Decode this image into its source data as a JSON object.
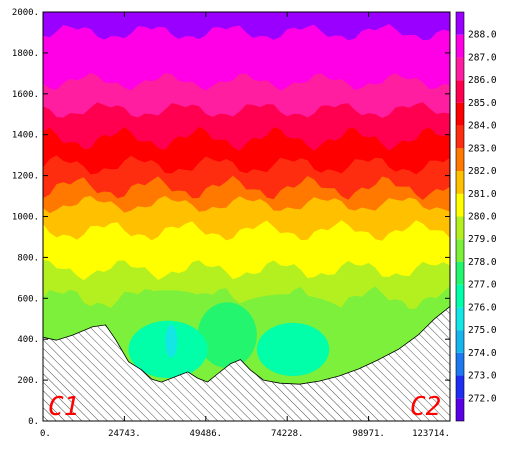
{
  "chart_data": {
    "type": "contour",
    "x_ticks": [
      "0.",
      "24743.",
      "49486.",
      "74228.",
      "98971.",
      "123714."
    ],
    "y_ticks": [
      "0.",
      "200.",
      "400.",
      "600.",
      "800.",
      "1000.",
      "1200.",
      "1400.",
      "1600.",
      "1800.",
      "2000."
    ],
    "xlim": [
      0,
      123714
    ],
    "ylim": [
      0,
      2000
    ],
    "levels": [
      {
        "label": "272.0",
        "color": "#5a00e6"
      },
      {
        "label": "273.0",
        "color": "#1f2ff2"
      },
      {
        "label": "274.0",
        "color": "#1e78f0"
      },
      {
        "label": "275.0",
        "color": "#17b4ee"
      },
      {
        "label": "276.0",
        "color": "#14e6e6"
      },
      {
        "label": "277.0",
        "color": "#00ffa8"
      },
      {
        "label": "278.0",
        "color": "#24f56e"
      },
      {
        "label": "279.0",
        "color": "#7cf03a"
      },
      {
        "label": "280.0",
        "color": "#b4f020"
      },
      {
        "label": "281.0",
        "color": "#ffff00"
      },
      {
        "label": "282.0",
        "color": "#ffc000"
      },
      {
        "label": "283.0",
        "color": "#ff7800"
      },
      {
        "label": "284.0",
        "color": "#ff2d10"
      },
      {
        "label": "285.0",
        "color": "#ff0000"
      },
      {
        "label": "286.0",
        "color": "#ff0050"
      },
      {
        "label": "287.0",
        "color": "#ff1ea0"
      },
      {
        "label": "288.0",
        "color": "#ff00e6"
      },
      {
        "label": "",
        "color": "#9900ff"
      }
    ],
    "annotations": [
      {
        "id": "left",
        "text": "C1"
      },
      {
        "id": "right",
        "text": "C2"
      }
    ],
    "terrain": [
      {
        "x": 0,
        "y": 410
      },
      {
        "x": 4000,
        "y": 395
      },
      {
        "x": 9000,
        "y": 420
      },
      {
        "x": 15000,
        "y": 460
      },
      {
        "x": 19000,
        "y": 470
      },
      {
        "x": 22000,
        "y": 400
      },
      {
        "x": 26000,
        "y": 290
      },
      {
        "x": 30000,
        "y": 250
      },
      {
        "x": 33000,
        "y": 205
      },
      {
        "x": 36000,
        "y": 190
      },
      {
        "x": 40000,
        "y": 215
      },
      {
        "x": 44000,
        "y": 240
      },
      {
        "x": 47000,
        "y": 210
      },
      {
        "x": 50000,
        "y": 190
      },
      {
        "x": 53000,
        "y": 230
      },
      {
        "x": 57000,
        "y": 280
      },
      {
        "x": 60000,
        "y": 300
      },
      {
        "x": 63000,
        "y": 250
      },
      {
        "x": 67000,
        "y": 200
      },
      {
        "x": 72000,
        "y": 185
      },
      {
        "x": 78000,
        "y": 180
      },
      {
        "x": 84000,
        "y": 195
      },
      {
        "x": 90000,
        "y": 220
      },
      {
        "x": 96000,
        "y": 255
      },
      {
        "x": 102000,
        "y": 300
      },
      {
        "x": 108000,
        "y": 350
      },
      {
        "x": 114000,
        "y": 420
      },
      {
        "x": 119000,
        "y": 500
      },
      {
        "x": 123714,
        "y": 560
      }
    ],
    "bands": [
      {
        "color_index": 8,
        "base": 600,
        "amp": 40
      },
      {
        "color_index": 9,
        "base": 740,
        "amp": 35
      },
      {
        "color_index": 10,
        "base": 930,
        "amp": 35
      },
      {
        "color_index": 11,
        "base": 1060,
        "amp": 30
      },
      {
        "color_index": 12,
        "base": 1140,
        "amp": 40
      },
      {
        "color_index": 13,
        "base": 1250,
        "amp": 35
      },
      {
        "color_index": 14,
        "base": 1380,
        "amp": 40
      },
      {
        "color_index": 15,
        "base": 1520,
        "amp": 30
      },
      {
        "color_index": 16,
        "base": 1660,
        "amp": 30
      },
      {
        "color_index": 17,
        "base": 1900,
        "amp": 30
      }
    ],
    "blobs": [
      {
        "color_index": 7,
        "cx": 38000,
        "cy": 440,
        "rx": 20000,
        "ry": 200
      },
      {
        "color_index": 7,
        "cx": 74000,
        "cy": 430,
        "rx": 22000,
        "ry": 190
      },
      {
        "color_index": 6,
        "cx": 56000,
        "cy": 420,
        "rx": 9000,
        "ry": 160
      },
      {
        "color_index": 5,
        "cx": 38000,
        "cy": 350,
        "rx": 12000,
        "ry": 140
      },
      {
        "color_index": 5,
        "cx": 76000,
        "cy": 350,
        "rx": 11000,
        "ry": 130
      },
      {
        "color_index": 4,
        "cx": 39000,
        "cy": 390,
        "rx": 1800,
        "ry": 80
      }
    ]
  }
}
